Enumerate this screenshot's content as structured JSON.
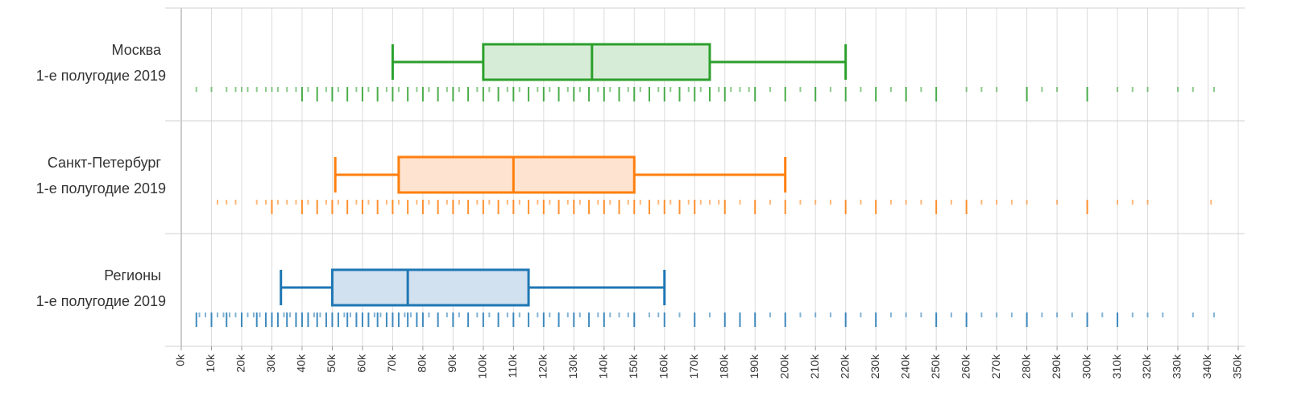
{
  "chart_data": {
    "type": "boxplot",
    "title": "",
    "xlabel": "",
    "ylabel": "",
    "xlim": [
      0,
      350000
    ],
    "orientation": "horizontal",
    "grid": true,
    "tick_labels": [
      "0k",
      "10k",
      "20k",
      "30k",
      "40k",
      "50k",
      "60k",
      "70k",
      "80k",
      "90k",
      "100k",
      "110k",
      "120k",
      "130k",
      "140k",
      "150k",
      "160k",
      "170k",
      "180k",
      "190k",
      "200k",
      "210k",
      "220k",
      "230k",
      "240k",
      "250k",
      "260k",
      "270k",
      "280k",
      "290k",
      "300k",
      "310k",
      "320k",
      "330k",
      "340k",
      "350k"
    ],
    "series": [
      {
        "name": "Москва",
        "period": "1-е полугодие 2019",
        "color": "#2ca02c",
        "fill": "#d6ecd6",
        "whisker_low": 70000,
        "q1": 100000,
        "median": 136000,
        "q3": 175000,
        "whisker_high": 220000,
        "major_values": [
          40000,
          45000,
          50000,
          55000,
          60000,
          65000,
          70000,
          75000,
          80000,
          85000,
          90000,
          95000,
          100000,
          105000,
          110000,
          115000,
          120000,
          125000,
          130000,
          135000,
          140000,
          145000,
          150000,
          155000,
          160000,
          165000,
          170000,
          175000,
          180000,
          190000,
          200000,
          210000,
          220000,
          230000,
          240000,
          250000,
          280000,
          300000
        ],
        "minor_values": [
          5000,
          10000,
          15000,
          18000,
          20000,
          22000,
          25000,
          28000,
          30000,
          32000,
          35000,
          38000,
          42000,
          48000,
          52000,
          58000,
          62000,
          68000,
          72000,
          78000,
          82000,
          88000,
          92000,
          98000,
          102000,
          108000,
          112000,
          118000,
          122000,
          128000,
          132000,
          138000,
          142000,
          148000,
          152000,
          158000,
          162000,
          168000,
          172000,
          178000,
          182000,
          185000,
          188000,
          195000,
          205000,
          215000,
          225000,
          235000,
          245000,
          260000,
          265000,
          270000,
          285000,
          290000,
          310000,
          315000,
          320000,
          330000,
          335000,
          342000
        ]
      },
      {
        "name": "Санкт-Петербург",
        "period": "1-е полугодие 2019",
        "color": "#ff7f0e",
        "fill": "#fde3d0",
        "whisker_low": 51000,
        "q1": 72000,
        "median": 110000,
        "q3": 150000,
        "whisker_high": 200000,
        "major_values": [
          30000,
          40000,
          45000,
          50000,
          55000,
          60000,
          65000,
          70000,
          75000,
          80000,
          85000,
          90000,
          95000,
          100000,
          105000,
          110000,
          115000,
          120000,
          125000,
          130000,
          135000,
          140000,
          145000,
          150000,
          155000,
          160000,
          165000,
          170000,
          180000,
          190000,
          200000,
          220000,
          230000,
          250000,
          260000,
          300000
        ],
        "minor_values": [
          12000,
          15000,
          18000,
          25000,
          28000,
          32000,
          35000,
          38000,
          42000,
          48000,
          52000,
          58000,
          62000,
          68000,
          72000,
          78000,
          82000,
          88000,
          92000,
          98000,
          102000,
          108000,
          112000,
          118000,
          122000,
          128000,
          132000,
          138000,
          142000,
          148000,
          152000,
          158000,
          162000,
          168000,
          172000,
          175000,
          178000,
          185000,
          195000,
          205000,
          210000,
          215000,
          225000,
          235000,
          240000,
          245000,
          255000,
          265000,
          270000,
          275000,
          280000,
          290000,
          310000,
          315000,
          320000,
          341000
        ]
      },
      {
        "name": "Регионы",
        "period": "1-е полугодие 2019",
        "color": "#1f77b4",
        "fill": "#d2e1ef",
        "whisker_low": 33000,
        "q1": 50000,
        "median": 75000,
        "q3": 115000,
        "whisker_high": 160000,
        "major_values": [
          5000,
          10000,
          15000,
          20000,
          25000,
          28000,
          30000,
          32000,
          35000,
          38000,
          40000,
          42000,
          45000,
          48000,
          50000,
          52000,
          55000,
          58000,
          60000,
          62000,
          65000,
          68000,
          70000,
          72000,
          75000,
          78000,
          80000,
          85000,
          90000,
          95000,
          100000,
          105000,
          110000,
          115000,
          120000,
          125000,
          130000,
          135000,
          140000,
          150000,
          160000,
          170000,
          180000,
          185000,
          190000,
          200000,
          220000,
          230000,
          250000,
          260000,
          280000,
          300000,
          310000
        ],
        "minor_values": [
          6000,
          8000,
          12000,
          14000,
          16000,
          18000,
          22000,
          24000,
          26000,
          34000,
          36000,
          44000,
          46000,
          54000,
          56000,
          64000,
          66000,
          74000,
          76000,
          82000,
          88000,
          92000,
          98000,
          102000,
          108000,
          112000,
          118000,
          122000,
          128000,
          132000,
          138000,
          142000,
          145000,
          148000,
          155000,
          158000,
          165000,
          175000,
          195000,
          205000,
          210000,
          215000,
          225000,
          235000,
          240000,
          245000,
          255000,
          265000,
          270000,
          275000,
          285000,
          290000,
          295000,
          305000,
          315000,
          320000,
          325000,
          335000,
          342000
        ]
      }
    ]
  }
}
